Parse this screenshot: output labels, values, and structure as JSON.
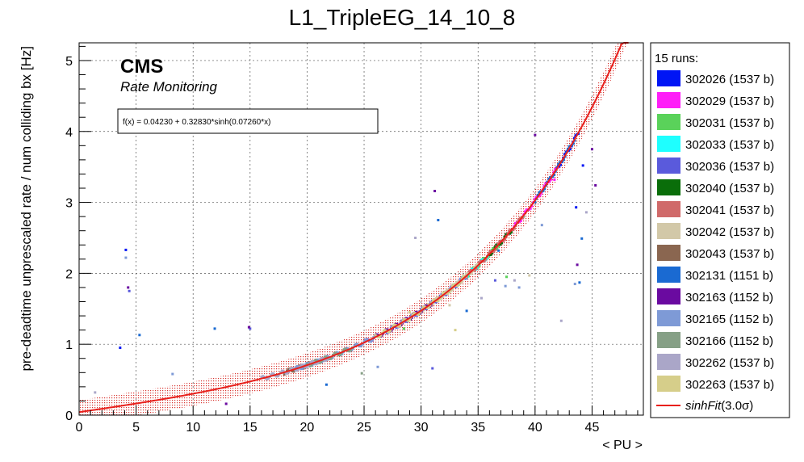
{
  "chart_data": {
    "type": "scatter",
    "title": "L1_TripleEG_14_10_8",
    "xlabel": "< PU >",
    "ylabel": "pre-deadtime unprescaled rate / num colliding bx [Hz]",
    "xlim": [
      0,
      49.5
    ],
    "ylim": [
      0,
      5.25
    ],
    "x_ticks": [
      0,
      5,
      10,
      15,
      20,
      25,
      30,
      35,
      40,
      45
    ],
    "y_ticks": [
      0,
      1,
      2,
      3,
      4,
      5
    ],
    "grid": true,
    "annotations": {
      "cms_label": "CMS",
      "subtitle": "Rate Monitoring",
      "fit_formula": "f(x) = 0.04230 + 0.32830*sinh(0.07260*x)"
    },
    "fit": {
      "name": "sinhFit(3.0σ)",
      "label_main": "sinhFit",
      "label_suffix": "(3.0σ)",
      "a": 0.0423,
      "b": 0.3283,
      "c": 0.0726,
      "x_range": [
        0,
        48.2
      ],
      "band_sigma": 3.0,
      "band_halfwidth": 0.17,
      "color": "#e8201c"
    },
    "legend": {
      "header": "15 runs:",
      "entries": [
        {
          "label": "302026 (1537 b)",
          "color": "#0015f5"
        },
        {
          "label": "302029 (1537 b)",
          "color": "#ff1ef8"
        },
        {
          "label": "302031 (1537 b)",
          "color": "#5ad25a"
        },
        {
          "label": "302033 (1537 b)",
          "color": "#1effff"
        },
        {
          "label": "302036 (1537 b)",
          "color": "#5a5adc"
        },
        {
          "label": "302040 (1537 b)",
          "color": "#0a6e0a"
        },
        {
          "label": "302041 (1537 b)",
          "color": "#d06a6a"
        },
        {
          "label": "302042 (1537 b)",
          "color": "#d2c8a8"
        },
        {
          "label": "302043 (1537 b)",
          "color": "#8a6650"
        },
        {
          "label": "302131 (1151 b)",
          "color": "#1a6ad2"
        },
        {
          "label": "302163 (1152 b)",
          "color": "#6a0aa0"
        },
        {
          "label": "302165 (1152 b)",
          "color": "#7e9ad6"
        },
        {
          "label": "302166 (1152 b)",
          "color": "#86a086"
        },
        {
          "label": "302262 (1537 b)",
          "color": "#aaa6c8"
        },
        {
          "label": "302263 (1537 b)",
          "color": "#d6ce8a"
        }
      ]
    },
    "series": [
      {
        "name": "302026 (1537 b)",
        "x_range": [
          42.0,
          43.8
        ],
        "outliers": [
          [
            3.6,
            0.95
          ],
          [
            4.1,
            2.33
          ],
          [
            43.6,
            2.93
          ],
          [
            44.2,
            3.52
          ]
        ]
      },
      {
        "name": "302029 (1537 b)",
        "x_range": [
          36.0,
          42.0
        ],
        "outliers": [
          [
            41.7,
            3.32
          ]
        ]
      },
      {
        "name": "302031 (1537 b)",
        "x_range": [
          32.0,
          37.0
        ],
        "outliers": [
          [
            28.5,
            1.22
          ],
          [
            37.5,
            1.95
          ]
        ]
      },
      {
        "name": "302033 (1537 b)",
        "x_range": [
          33.0,
          36.0
        ],
        "outliers": []
      },
      {
        "name": "302036 (1537 b)",
        "x_range": [
          27.0,
          34.0
        ],
        "outliers": [
          [
            4.4,
            1.75
          ],
          [
            15.0,
            1.22
          ],
          [
            31.0,
            0.66
          ],
          [
            36.5,
            1.9
          ]
        ]
      },
      {
        "name": "302040 (1537 b)",
        "x_range": [
          36.0,
          38.0
        ],
        "outliers": []
      },
      {
        "name": "302041 (1537 b)",
        "x_range": [
          34.0,
          39.0
        ],
        "outliers": []
      },
      {
        "name": "302042 (1537 b)",
        "x_range": [
          30.0,
          35.0
        ],
        "outliers": [
          [
            32.5,
            1.55
          ],
          [
            39.5,
            1.97
          ]
        ]
      },
      {
        "name": "302043 (1537 b)",
        "x_range": [
          18.0,
          20.5
        ],
        "outliers": []
      },
      {
        "name": "302131 (1151 b)",
        "x_range": [
          40.0,
          43.5
        ],
        "outliers": [
          [
            5.3,
            1.13
          ],
          [
            11.9,
            1.22
          ],
          [
            21.7,
            0.43
          ],
          [
            31.5,
            2.75
          ],
          [
            34.0,
            1.47
          ],
          [
            36.8,
            2.32
          ],
          [
            43.9,
            1.87
          ],
          [
            44.1,
            2.49
          ]
        ]
      },
      {
        "name": "302163 (1152 b)",
        "x_range": [
          25.0,
          31.0
        ],
        "outliers": [
          [
            4.3,
            1.8
          ],
          [
            14.9,
            1.24
          ],
          [
            12.9,
            0.16
          ],
          [
            31.2,
            3.16
          ],
          [
            43.7,
            2.12
          ],
          [
            40.0,
            3.95
          ],
          [
            45.3,
            3.24
          ],
          [
            45.0,
            3.75
          ]
        ]
      },
      {
        "name": "302165 (1152 b)",
        "x_range": [
          19.0,
          26.0
        ],
        "outliers": [
          [
            4.1,
            2.22
          ],
          [
            8.2,
            0.58
          ],
          [
            26.2,
            0.68
          ],
          [
            37.4,
            1.82
          ],
          [
            38.6,
            1.8
          ],
          [
            40.6,
            2.68
          ],
          [
            43.5,
            1.85
          ]
        ]
      },
      {
        "name": "302166 (1152 b)",
        "x_range": [
          20.0,
          24.0
        ],
        "outliers": [
          [
            24.8,
            0.59
          ],
          [
            39.0,
            2.8
          ]
        ]
      },
      {
        "name": "302262 (1537 b)",
        "x_range": [
          16.0,
          22.0
        ],
        "outliers": [
          [
            1.4,
            0.32
          ],
          [
            29.5,
            2.5
          ],
          [
            35.3,
            1.65
          ],
          [
            38.2,
            1.9
          ],
          [
            42.3,
            1.33
          ],
          [
            44.5,
            2.86
          ]
        ]
      },
      {
        "name": "302263 (1537 b)",
        "x_range": [
          26.0,
          34.0
        ],
        "outliers": [
          [
            29.0,
            1.45
          ],
          [
            33.0,
            1.2
          ]
        ]
      }
    ]
  }
}
